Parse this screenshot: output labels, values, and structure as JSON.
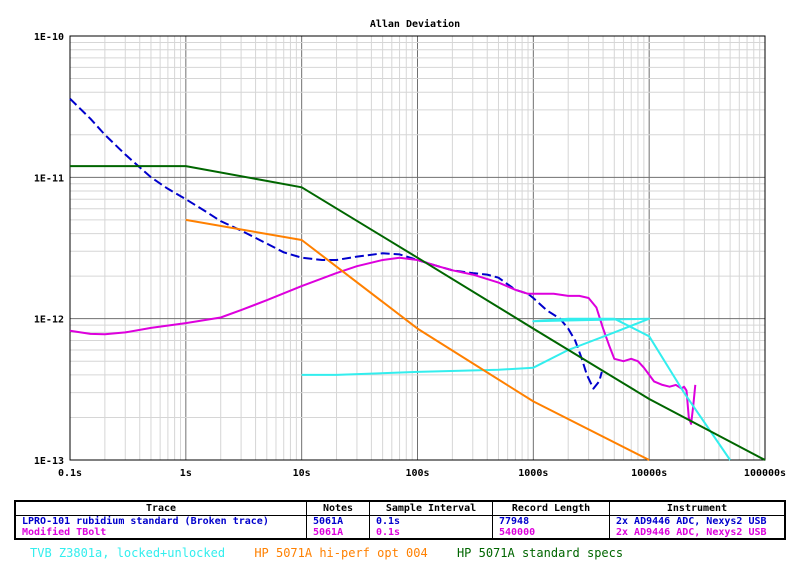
{
  "chart_data": {
    "type": "line",
    "title": "Allan Deviation",
    "x_scale": "log",
    "y_scale": "log",
    "xlim": [
      0.1,
      100000
    ],
    "ylim": [
      1e-13,
      1e-10
    ],
    "grid": true,
    "x_ticks": [
      {
        "value": 0.1,
        "label": "0.1s"
      },
      {
        "value": 1,
        "label": "1s"
      },
      {
        "value": 10,
        "label": "10s"
      },
      {
        "value": 100,
        "label": "100s"
      },
      {
        "value": 1000,
        "label": "1000s"
      },
      {
        "value": 10000,
        "label": "10000s"
      },
      {
        "value": 100000,
        "label": "100000s"
      }
    ],
    "y_ticks": [
      {
        "value": 1e-10,
        "label": "1E-10"
      },
      {
        "value": 1e-11,
        "label": "1E-11"
      },
      {
        "value": 1e-12,
        "label": "1E-12"
      },
      {
        "value": 1e-13,
        "label": "1E-13"
      }
    ],
    "series": [
      {
        "name": "LPRO-101 rubidium standard (Broken trace)",
        "color": "#0000cc",
        "dash": true,
        "points": [
          [
            0.1,
            3.6e-11
          ],
          [
            0.15,
            2.6e-11
          ],
          [
            0.2,
            2e-11
          ],
          [
            0.3,
            1.45e-11
          ],
          [
            0.5,
            1e-11
          ],
          [
            0.7,
            8.3e-12
          ],
          [
            1,
            7e-12
          ],
          [
            1.5,
            5.7e-12
          ],
          [
            2,
            4.9e-12
          ],
          [
            3,
            4.2e-12
          ],
          [
            5,
            3.4e-12
          ],
          [
            7,
            2.95e-12
          ],
          [
            10,
            2.7e-12
          ],
          [
            15,
            2.6e-12
          ],
          [
            20,
            2.6e-12
          ],
          [
            30,
            2.75e-12
          ],
          [
            50,
            2.9e-12
          ],
          [
            70,
            2.85e-12
          ],
          [
            100,
            2.6e-12
          ],
          [
            150,
            2.35e-12
          ],
          [
            200,
            2.2e-12
          ],
          [
            300,
            2.1e-12
          ],
          [
            400,
            2.05e-12
          ],
          [
            500,
            1.95e-12
          ],
          [
            700,
            1.6e-12
          ],
          [
            900,
            1.5e-12
          ],
          [
            1000,
            1.4e-12
          ],
          [
            1300,
            1.15e-12
          ],
          [
            1700,
            1e-12
          ],
          [
            2000,
            8.5e-13
          ],
          [
            2300,
            7e-13
          ],
          [
            2600,
            5.3e-13
          ],
          [
            2900,
            4e-13
          ],
          [
            3300,
            3.2e-13
          ],
          [
            3700,
            3.6e-13
          ],
          [
            3900,
            4.2e-13
          ]
        ]
      },
      {
        "name": "Modified TBolt",
        "color": "#dd00dd",
        "dash": false,
        "points": [
          [
            0.1,
            8.2e-13
          ],
          [
            0.15,
            7.8e-13
          ],
          [
            0.2,
            7.75e-13
          ],
          [
            0.3,
            8e-13
          ],
          [
            0.5,
            8.6e-13
          ],
          [
            1,
            9.3e-13
          ],
          [
            2,
            1.02e-12
          ],
          [
            3,
            1.15e-12
          ],
          [
            5,
            1.35e-12
          ],
          [
            10,
            1.7e-12
          ],
          [
            20,
            2.1e-12
          ],
          [
            30,
            2.35e-12
          ],
          [
            50,
            2.6e-12
          ],
          [
            70,
            2.7e-12
          ],
          [
            100,
            2.6e-12
          ],
          [
            150,
            2.35e-12
          ],
          [
            200,
            2.2e-12
          ],
          [
            300,
            2.05e-12
          ],
          [
            500,
            1.8e-12
          ],
          [
            700,
            1.6e-12
          ],
          [
            900,
            1.5e-12
          ],
          [
            1200,
            1.5e-12
          ],
          [
            1500,
            1.5e-12
          ],
          [
            2000,
            1.45e-12
          ],
          [
            2500,
            1.45e-12
          ],
          [
            3000,
            1.4e-12
          ],
          [
            3500,
            1.2e-12
          ],
          [
            4000,
            8.5e-13
          ],
          [
            4500,
            6.5e-13
          ],
          [
            5000,
            5.2e-13
          ],
          [
            6000,
            5e-13
          ],
          [
            7000,
            5.2e-13
          ],
          [
            8000,
            5e-13
          ],
          [
            9000,
            4.5e-13
          ],
          [
            10000,
            4e-13
          ],
          [
            11000,
            3.6e-13
          ],
          [
            13000,
            3.4e-13
          ],
          [
            15000,
            3.3e-13
          ],
          [
            17000,
            3.4e-13
          ],
          [
            19000,
            3.2e-13
          ],
          [
            20000,
            3.3e-13
          ],
          [
            21000,
            3.1e-13
          ],
          [
            22000,
            2e-13
          ],
          [
            23000,
            1.8e-13
          ],
          [
            24000,
            2.4e-13
          ],
          [
            25000,
            3.4e-13
          ]
        ]
      },
      {
        "name": "TVB Z3801a, locked+unlocked",
        "color": "#33eeee",
        "dash": false,
        "points": [
          [
            10,
            4e-13
          ],
          [
            20,
            4e-13
          ],
          [
            100,
            4.2e-13
          ],
          [
            500,
            4.35e-13
          ],
          [
            1000,
            4.5e-13
          ],
          [
            2000,
            6e-13
          ],
          [
            5000,
            8e-13
          ],
          [
            10000,
            1e-12
          ],
          [
            1000,
            9.6e-13
          ],
          [
            2000,
            1e-12
          ],
          [
            3000,
            1e-12
          ],
          [
            5000,
            1e-12
          ],
          [
            10000,
            7.5e-13
          ],
          [
            20000,
            3e-13
          ],
          [
            50000,
            1e-13
          ]
        ]
      },
      {
        "name": "HP 5071A hi-perf opt 004",
        "color": "#ff8000",
        "dash": false,
        "points": [
          [
            1,
            5e-12
          ],
          [
            10,
            3.6e-12
          ],
          [
            100,
            8.5e-13
          ],
          [
            1000,
            2.6e-13
          ],
          [
            10000,
            1e-13
          ]
        ]
      },
      {
        "name": "HP 5071A standard specs",
        "color": "#006600",
        "dash": false,
        "points": [
          [
            0.1,
            1.2e-11
          ],
          [
            1,
            1.2e-11
          ],
          [
            10,
            8.5e-12
          ],
          [
            100,
            2.7e-12
          ],
          [
            1000,
            8.5e-13
          ],
          [
            10000,
            2.7e-13
          ],
          [
            100000,
            1e-13
          ]
        ]
      }
    ]
  },
  "table": {
    "headers": [
      "Trace",
      "Notes",
      "Sample Interval",
      "Record Length",
      "Instrument"
    ],
    "rows": [
      {
        "color": "#0000cc",
        "cells": [
          "LPRO-101 rubidium standard (Broken trace)",
          "5061A",
          "0.1s",
          "77948",
          "2x AD9446 ADC, Nexys2 USB"
        ]
      },
      {
        "color": "#dd00dd",
        "cells": [
          "Modified TBolt",
          "5061A",
          "0.1s",
          "540000",
          "2x AD9446 ADC, Nexys2 USB"
        ]
      }
    ]
  },
  "footer": [
    {
      "text": "TVB Z3801a, locked+unlocked",
      "color": "#33eeee"
    },
    {
      "text": "HP 5071A hi-perf opt 004",
      "color": "#ff8000"
    },
    {
      "text": "HP 5071A standard specs",
      "color": "#006600"
    }
  ]
}
